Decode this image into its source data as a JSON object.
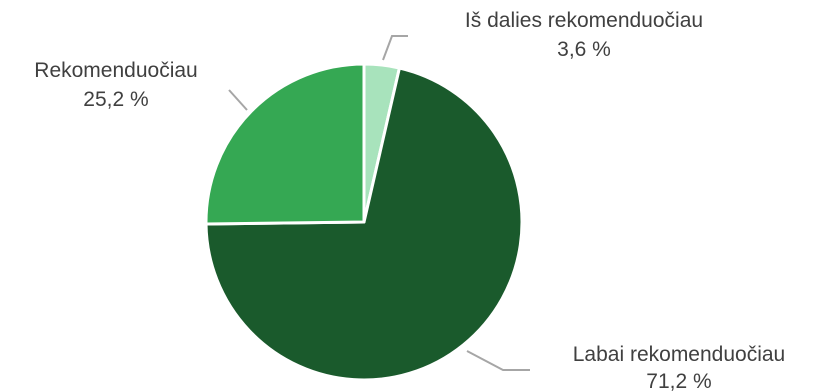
{
  "chart_data": {
    "type": "pie",
    "title": "",
    "slices": [
      {
        "label": "Iš dalies rekomenduočiau",
        "value": 3.6,
        "value_label": "3,6 %",
        "color": "#a8e3bc"
      },
      {
        "label": "Labai rekomenduočiau",
        "value": 71.2,
        "value_label": "71,2 %",
        "color": "#1a5a2c"
      },
      {
        "label": "Rekomenduočiau",
        "value": 25.2,
        "value_label": "25,2 %",
        "color": "#35a853"
      }
    ],
    "start_angle": "12 o'clock",
    "direction": "clockwise",
    "legend": "none",
    "data_labels": "outside with leader lines"
  }
}
